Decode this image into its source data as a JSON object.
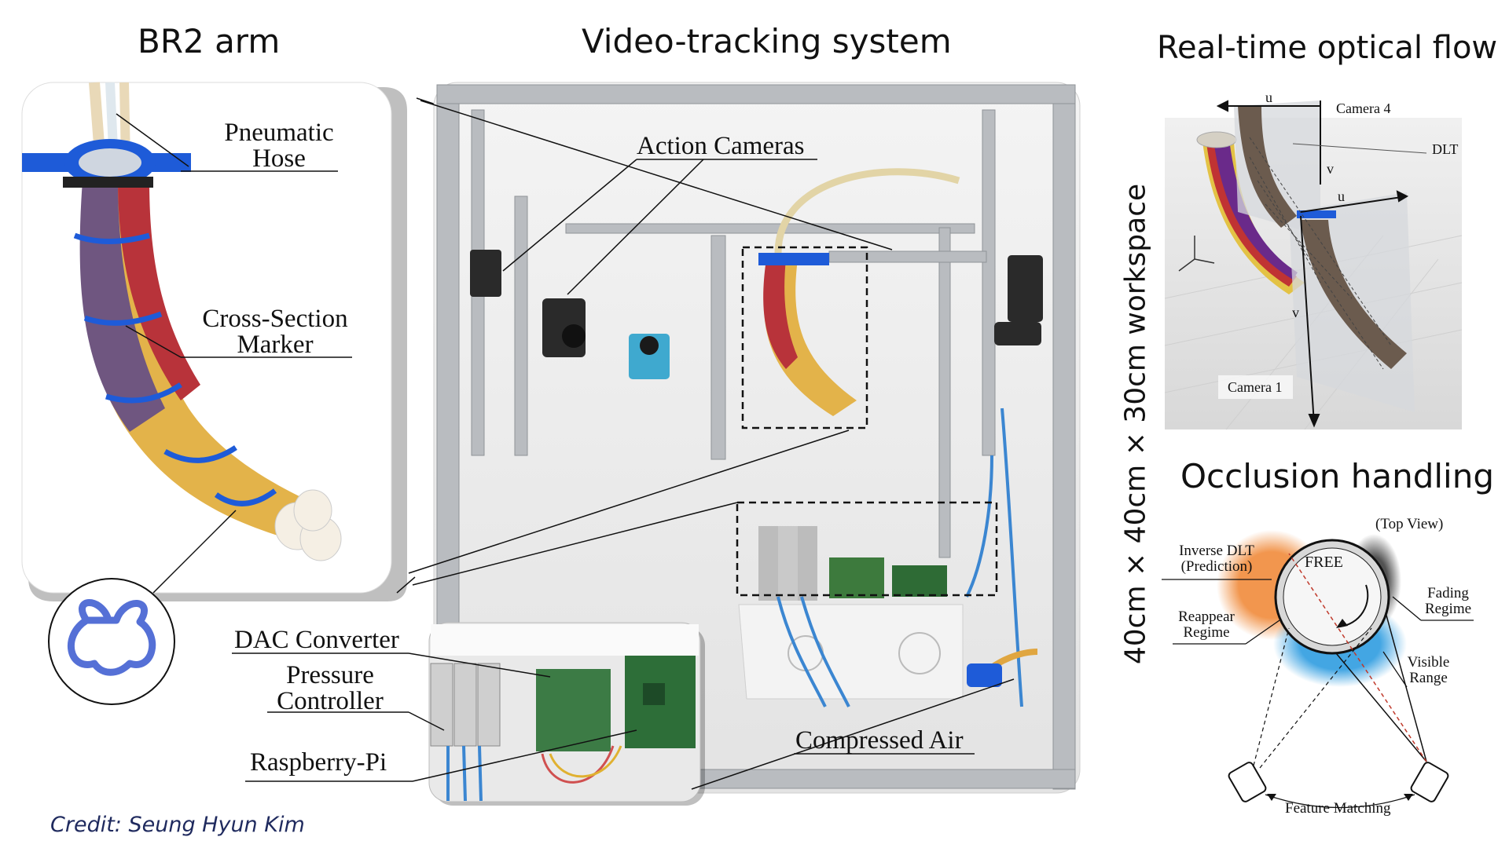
{
  "panels": {
    "br2_arm": {
      "title": "BR2 arm",
      "labels": {
        "pneumatic_hose_line1": "Pneumatic",
        "pneumatic_hose_line2": "Hose",
        "cross_section_line1": "Cross-Section",
        "cross_section_line2": "Marker"
      }
    },
    "video_tracking": {
      "title": "Video-tracking system",
      "labels": {
        "action_cameras": "Action Cameras",
        "dac_converter": "DAC Converter",
        "pressure_controller_line1": "Pressure",
        "pressure_controller_line2": "Controller",
        "raspberry_pi": "Raspberry-Pi",
        "compressed_air": "Compressed Air"
      },
      "workspace": "40cm × 40cm × 30cm workspace"
    },
    "optical_flow": {
      "title": "Real-time optical flow",
      "labels": {
        "camera_4": "Camera 4",
        "camera_1": "Camera 1",
        "dlt": "DLT",
        "u_top": "u",
        "v_top": "v",
        "u_mid": "u",
        "v_bottom": "v"
      }
    },
    "occlusion": {
      "title": "Occlusion handling",
      "labels": {
        "top_view": "(Top View)",
        "free": "FREE",
        "inverse_dlt_line1": "Inverse DLT",
        "inverse_dlt_line2": "(Prediction)",
        "reappear_line1": "Reappear",
        "reappear_line2": "Regime",
        "fading_line1": "Fading",
        "fading_line2": "Regime",
        "visible_line1": "Visible",
        "visible_line2": "Range",
        "feature_matching": "Feature Matching"
      }
    }
  },
  "credit": "Credit: Seung Hyun Kim",
  "colors": {
    "blue_marker": "#1e5bd8",
    "arm_red": "#b8333a",
    "arm_yellow": "#e3b34a",
    "arm_purple": "#6f5680",
    "fade_orange": "#f08a3a",
    "fade_blue": "#2e9ce0",
    "credit_navy": "#1f2a5e"
  }
}
